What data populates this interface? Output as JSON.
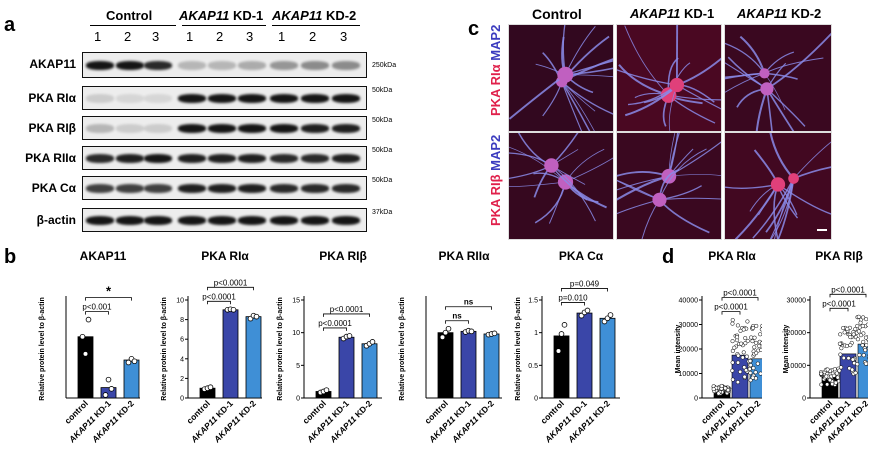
{
  "panel_a": {
    "letter": "a",
    "groups": [
      {
        "prefix": "",
        "italic": "",
        "suffix": "Control"
      },
      {
        "prefix": "",
        "italic": "AKAP11",
        "suffix": " KD-1"
      },
      {
        "prefix": "",
        "italic": "AKAP11",
        "suffix": " KD-2"
      }
    ],
    "lanes": [
      "1",
      "2",
      "3",
      "1",
      "2",
      "3",
      "1",
      "2",
      "3"
    ],
    "blots": [
      {
        "label": "AKAP11",
        "kda": "250kDa"
      },
      {
        "label": "PKA RIα",
        "kda": "50kDa"
      },
      {
        "label": "PKA RIβ",
        "kda": "50kDa"
      },
      {
        "label": "PKA RIIα",
        "kda": "50kDa"
      },
      {
        "label": "PKA Cα",
        "kda": "50kDa"
      },
      {
        "label": "β-actin",
        "kda": "37kDa"
      }
    ]
  },
  "panel_b": {
    "letter": "b"
  },
  "panel_c": {
    "letter": "c",
    "columns": [
      {
        "italic": "",
        "suffix": "Control"
      },
      {
        "italic": "AKAP11",
        "suffix": " KD-1"
      },
      {
        "italic": "AKAP11",
        "suffix": " KD-2"
      }
    ],
    "rows": [
      {
        "red": "PKA RIα",
        "blue": "MAP2"
      },
      {
        "red": "PKA RIβ",
        "blue": "MAP2"
      }
    ],
    "colors": {
      "red": "#e0204b",
      "blue": "#3b3bbf"
    }
  },
  "panel_d": {
    "letter": "d"
  },
  "colors": {
    "control": "#000000",
    "kd1": "#3a46a8",
    "kd2": "#3f8fd6"
  },
  "chart_data": [
    {
      "type": "bar",
      "panel": "b",
      "title": "AKAP11",
      "categories": [
        "control",
        "AKAP11 KD-1",
        "AKAP11 KD-2"
      ],
      "values": [
        1.0,
        0.17,
        0.62
      ],
      "points": [
        [
          1.0,
          0.72,
          1.28
        ],
        [
          0.05,
          0.3,
          0.15
        ],
        [
          0.58,
          0.64,
          0.6
        ]
      ],
      "ylabel": "Relative protein level to β-actin",
      "ylim": [
        0,
        1.6
      ],
      "yticks": [],
      "grid": false,
      "comparisons": [
        {
          "from": 0,
          "to": 1,
          "label": "p<0.001"
        },
        {
          "from": 0,
          "to": 2,
          "label": "*"
        }
      ]
    },
    {
      "type": "bar",
      "panel": "b",
      "title": "PKA RIα",
      "categories": [
        "control",
        "AKAP11 KD-1",
        "AKAP11 KD-2"
      ],
      "values": [
        1.0,
        9.0,
        8.3
      ],
      "points": [
        [
          0.9,
          1.0,
          1.1
        ],
        [
          9.0,
          9.05,
          9.0
        ],
        [
          8.1,
          8.4,
          8.3
        ]
      ],
      "ylabel": "Relative protein level to β-actin",
      "ylim": [
        0,
        10
      ],
      "yticks": [
        0,
        2,
        4,
        6,
        8,
        10
      ],
      "grid": false,
      "comparisons": [
        {
          "from": 0,
          "to": 1,
          "label": "p<0.0001"
        },
        {
          "from": 0,
          "to": 2,
          "label": "p<0.0001"
        }
      ]
    },
    {
      "type": "bar",
      "panel": "b",
      "title": "PKA RIβ",
      "categories": [
        "control",
        "AKAP11 KD-1",
        "AKAP11 KD-2"
      ],
      "values": [
        1.0,
        9.3,
        8.3
      ],
      "points": [
        [
          0.85,
          1.0,
          1.2
        ],
        [
          9.1,
          9.4,
          9.5
        ],
        [
          8.0,
          8.3,
          8.6
        ]
      ],
      "ylabel": "Relative protein level to β-actin",
      "ylim": [
        0,
        15
      ],
      "yticks": [
        0,
        5,
        10,
        15
      ],
      "grid": false,
      "comparisons": [
        {
          "from": 0,
          "to": 1,
          "label": "p<0.0001"
        },
        {
          "from": 0,
          "to": 2,
          "label": "p<0.0001"
        }
      ]
    },
    {
      "type": "bar",
      "panel": "b",
      "title": "PKA RIIα",
      "categories": [
        "control",
        "AKAP11 KD-1",
        "AKAP11 KD-2"
      ],
      "values": [
        1.0,
        1.02,
        0.98
      ],
      "points": [
        [
          0.93,
          1.0,
          1.06
        ],
        [
          1.01,
          1.03,
          1.02
        ],
        [
          0.97,
          0.98,
          0.99
        ]
      ],
      "ylabel": "Relative protein level to β-actin",
      "ylim": [
        0,
        1.5
      ],
      "yticks": [],
      "grid": false,
      "comparisons": [
        {
          "from": 0,
          "to": 1,
          "label": "ns"
        },
        {
          "from": 0,
          "to": 2,
          "label": "ns"
        }
      ]
    },
    {
      "type": "bar",
      "panel": "b",
      "title": "PKA Cα",
      "categories": [
        "control",
        "AKAP11 KD-1",
        "AKAP11 KD-2"
      ],
      "values": [
        0.95,
        1.3,
        1.22
      ],
      "points": [
        [
          0.72,
          0.98,
          1.12
        ],
        [
          1.26,
          1.31,
          1.34
        ],
        [
          1.17,
          1.22,
          1.27
        ]
      ],
      "ylabel": "Relative protein level to β-actin",
      "ylim": [
        0,
        1.5
      ],
      "yticks": [
        0.0,
        0.5,
        1.0,
        1.5
      ],
      "grid": false,
      "comparisons": [
        {
          "from": 0,
          "to": 1,
          "label": "p=0.010"
        },
        {
          "from": 0,
          "to": 2,
          "label": "p=0.049"
        }
      ]
    },
    {
      "type": "scatter",
      "panel": "d",
      "title": "PKA RIα",
      "categories": [
        "control",
        "AKAP11 KD-1",
        "AKAP11 KD-2"
      ],
      "values": [
        3000,
        17500,
        16000
      ],
      "point_ranges": [
        [
          1500,
          5000
        ],
        [
          6000,
          32000
        ],
        [
          7000,
          30000
        ]
      ],
      "ylabel": "Mean intensity",
      "ylim": [
        0,
        40000
      ],
      "yticks": [
        0,
        10000,
        20000,
        30000,
        40000
      ],
      "grid": false,
      "comparisons": [
        {
          "from": 0,
          "to": 1,
          "label": "p<0.0001"
        },
        {
          "from": 0,
          "to": 2,
          "label": "p<0.0001"
        }
      ]
    },
    {
      "type": "scatter",
      "panel": "d",
      "title": "PKA RIβ",
      "categories": [
        "control",
        "AKAP11 KD-1",
        "AKAP11 KD-2"
      ],
      "values": [
        6500,
        13500,
        16500
      ],
      "point_ranges": [
        [
          4000,
          9000
        ],
        [
          7000,
          22000
        ],
        [
          9000,
          25000
        ]
      ],
      "ylabel": "Mean intensity",
      "ylim": [
        0,
        30000
      ],
      "yticks": [
        0,
        10000,
        20000,
        30000
      ],
      "grid": false,
      "comparisons": [
        {
          "from": 0,
          "to": 1,
          "label": "p<0.0001"
        },
        {
          "from": 0,
          "to": 2,
          "label": "p<0.0001"
        }
      ]
    }
  ]
}
